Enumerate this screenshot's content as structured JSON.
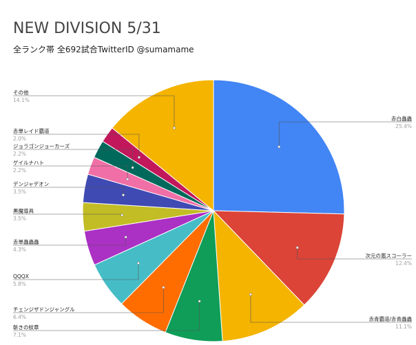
{
  "chart_data": {
    "type": "pie",
    "title": "NEW DIVISION 5/31",
    "subtitle": "全ランク帯 全692試合TwitterID @sumamame",
    "start_angle_deg": 0,
    "direction": "clockwise",
    "slices": [
      {
        "label": "赤白蟲蟲",
        "value": 25.4,
        "pct": "25.4%",
        "color": "#4285f4"
      },
      {
        "label": "次元の嵐スコーラー",
        "value": 12.4,
        "pct": "12.4%",
        "color": "#db4437"
      },
      {
        "label": "赤青覇道/赤青蟲蟲",
        "value": 11.1,
        "pct": "11.1%",
        "color": "#f4b400"
      },
      {
        "label": "斬きの紋章",
        "value": 7.1,
        "pct": "7.1%",
        "color": "#0f9d58"
      },
      {
        "label": "チェンジザドンジャングル",
        "value": 6.4,
        "pct": "6.4%",
        "color": "#ff6d00"
      },
      {
        "label": "QQQX",
        "value": 5.8,
        "pct": "5.8%",
        "color": "#46bdc6"
      },
      {
        "label": "赤単蟲蟲蟲",
        "value": 4.3,
        "pct": "4.3%",
        "color": "#ab30c4"
      },
      {
        "label": "黒魔導具",
        "value": 3.5,
        "pct": "3.5%",
        "color": "#c2bc25"
      },
      {
        "label": "デンジャデオン",
        "value": 3.5,
        "pct": "3.5%",
        "color": "#3f4ab3"
      },
      {
        "label": "ゲイルナハト",
        "value": 2.2,
        "pct": "2.2%",
        "color": "#f06fa6"
      },
      {
        "label": "ジョラゴンジョーカーズ",
        "value": 2.2,
        "pct": "2.2%",
        "color": "#00695c"
      },
      {
        "label": "赤単レイド覇道",
        "value": 2.0,
        "pct": "2.0%",
        "color": "#c2185b"
      },
      {
        "label": "その他",
        "value": 14.1,
        "pct": "14.1%",
        "color": "#f4b400"
      }
    ]
  }
}
